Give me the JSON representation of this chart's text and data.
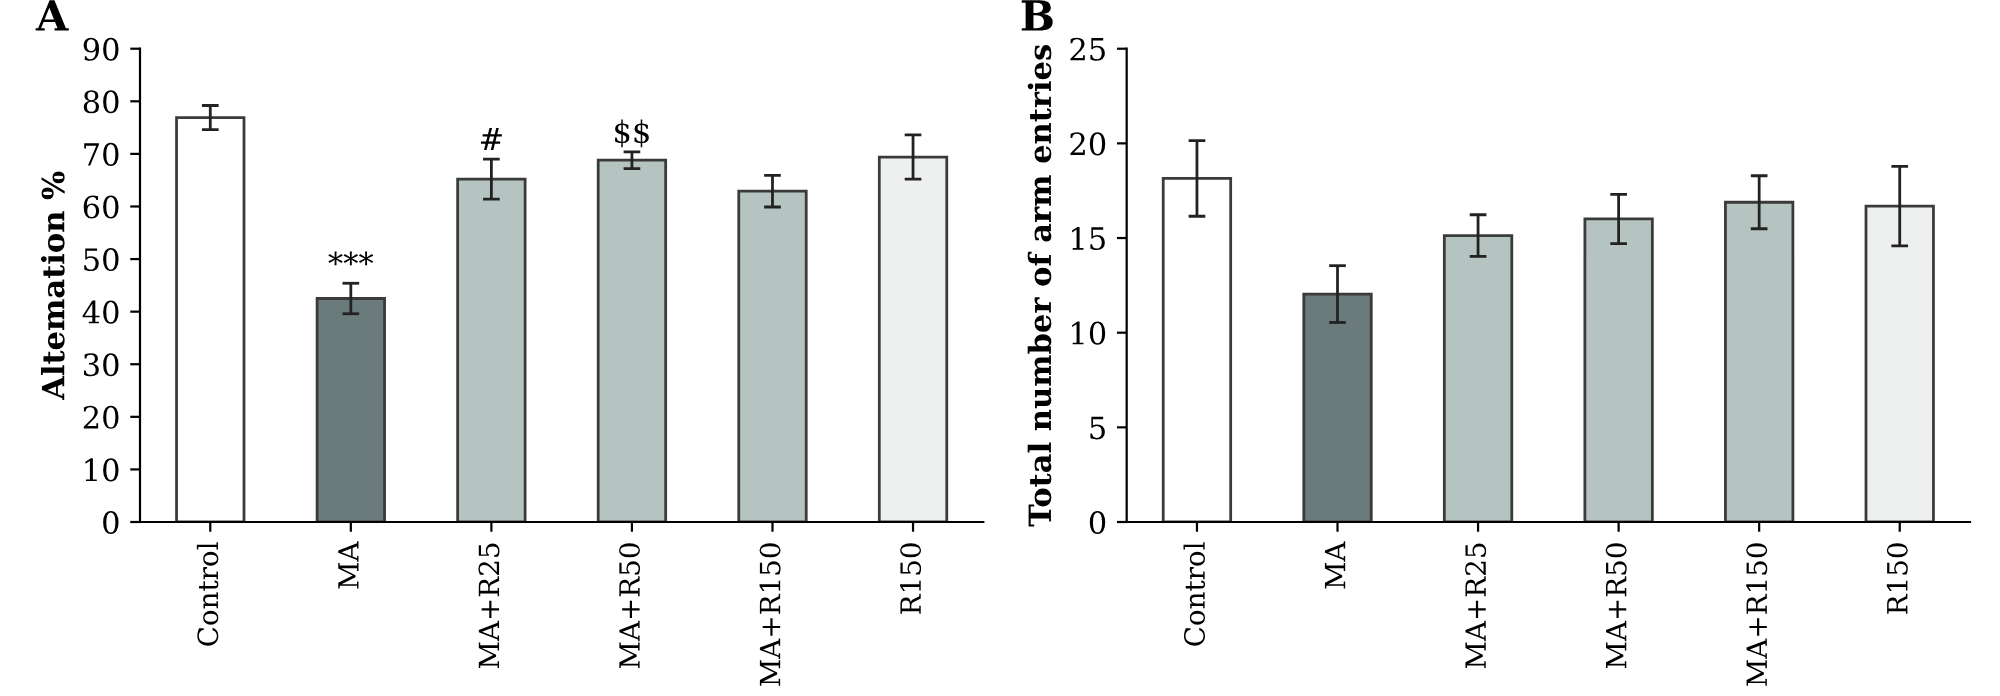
{
  "chart_data": [
    {
      "type": "bar",
      "title": "A",
      "ylabel": "Altemation %",
      "categories": [
        "Control",
        "MA",
        "MA+R25",
        "MA+R50",
        "MA+R150",
        "R150"
      ],
      "values": [
        76.9,
        42.5,
        65.2,
        68.8,
        62.9,
        69.4
      ],
      "errors": [
        2.3,
        2.9,
        3.8,
        1.6,
        3.0,
        4.2
      ],
      "colors": [
        "#ffffff",
        "#6b7a7b",
        "#b6c4c1",
        "#b6c4c1",
        "#b6c4c1",
        "#eef0ef"
      ],
      "ylim": [
        0,
        90
      ],
      "yticks": [
        0,
        10,
        20,
        30,
        40,
        50,
        60,
        70,
        80,
        90
      ],
      "grid": false,
      "annotations": [
        {
          "text": "***",
          "x": "MA",
          "y": 45.4
        },
        {
          "text": "#",
          "x": "MA+R25",
          "y": 69.0
        },
        {
          "text": "$$",
          "x": "MA+R50",
          "y": 70.4
        }
      ]
    },
    {
      "type": "bar",
      "title": "B",
      "ylabel": "Total number of arm entries",
      "categories": [
        "Control",
        "MA",
        "MA+R25",
        "MA+R50",
        "MA+R150",
        "R150"
      ],
      "values": [
        18.15,
        12.04,
        15.13,
        16.01,
        16.89,
        16.68
      ],
      "errors": [
        2.0,
        1.5,
        1.1,
        1.3,
        1.4,
        2.1
      ],
      "colors": [
        "#ffffff",
        "#6b7a7b",
        "#b6c4c1",
        "#b6c4c1",
        "#b6c4c1",
        "#eef0ef"
      ],
      "ylim": [
        0,
        25
      ],
      "yticks": [
        0,
        5,
        10,
        15,
        20,
        25
      ],
      "grid": false
    }
  ]
}
